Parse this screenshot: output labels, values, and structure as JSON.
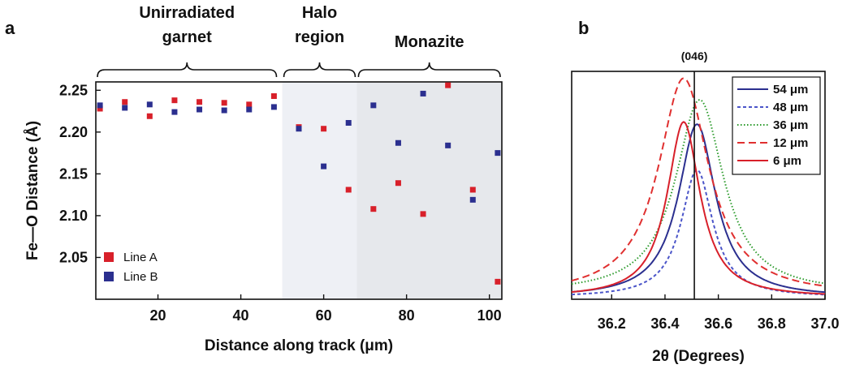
{
  "panel_a": {
    "letter": "a",
    "regions": [
      {
        "lines": [
          "Unirradiated",
          "garnet"
        ],
        "x_range": [
          5,
          49
        ],
        "shade": "#ffffff"
      },
      {
        "lines": [
          "Halo",
          "region"
        ],
        "x_range": [
          50,
          68
        ],
        "shade": "#eef0f5"
      },
      {
        "lines": [
          "Monazite"
        ],
        "x_range": [
          68,
          103
        ],
        "shade": "#e6e8ec"
      }
    ]
  },
  "panel_b": {
    "letter": "b",
    "reference_label": "(046)",
    "reference_x": 36.51
  },
  "colors": {
    "line_a": "#d8202a",
    "line_b": "#2b2f8f",
    "green": "#2a9a2a",
    "axis": "#111111"
  },
  "chart_data": [
    {
      "type": "scatter",
      "title": "",
      "xlabel": "Distance along track (μm)",
      "ylabel": "Fe—O Distance (Å)",
      "xlim": [
        5,
        103
      ],
      "ylim": [
        2.0,
        2.26
      ],
      "xticks": [
        20,
        40,
        60,
        80,
        100
      ],
      "yticks": [
        2.05,
        2.1,
        2.15,
        2.2,
        2.25
      ],
      "ytick_labels": [
        "2.05",
        "2.10",
        "2.15",
        "2.20",
        "2.25"
      ],
      "grid": false,
      "legend_position": "bottom-left",
      "series": [
        {
          "name": "Line A",
          "color": "#d8202a",
          "x": [
            6,
            12,
            18,
            24,
            30,
            36,
            42,
            48,
            54,
            60,
            66,
            72,
            78,
            84,
            90,
            96,
            102
          ],
          "y": [
            2.228,
            2.236,
            2.219,
            2.238,
            2.236,
            2.235,
            2.233,
            2.243,
            2.206,
            2.204,
            2.131,
            2.108,
            2.139,
            2.102,
            2.256,
            2.131,
            2.021
          ]
        },
        {
          "name": "Line B",
          "color": "#2b2f8f",
          "x": [
            6,
            12,
            18,
            24,
            30,
            36,
            42,
            48,
            54,
            60,
            66,
            72,
            78,
            84,
            90,
            96,
            102
          ],
          "y": [
            2.232,
            2.229,
            2.233,
            2.224,
            2.227,
            2.226,
            2.227,
            2.23,
            2.204,
            2.159,
            2.211,
            2.232,
            2.187,
            2.246,
            2.184,
            2.119,
            2.175
          ]
        }
      ]
    },
    {
      "type": "line",
      "title": "",
      "xlabel": "2θ (Degrees)",
      "ylabel": "",
      "xlim": [
        36.05,
        37.0
      ],
      "ylim": [
        0,
        1.0
      ],
      "xticks": [
        36.2,
        36.4,
        36.6,
        36.8,
        37.0
      ],
      "xtick_labels": [
        "36.2",
        "36.4",
        "36.6",
        "36.8",
        "37.0"
      ],
      "grid": false,
      "legend_position": "top-right",
      "series": [
        {
          "name": "54 μm",
          "color": "#2b2f8f",
          "style": "solid",
          "center": 36.52,
          "height": 0.76,
          "width": 0.085,
          "baseline": 0.008
        },
        {
          "name": "48 μm",
          "color": "#4b55c9",
          "style": "dot",
          "center": 36.52,
          "height": 0.56,
          "width": 0.072,
          "baseline": 0.008
        },
        {
          "name": "36 μm",
          "color": "#2a9a2a",
          "style": "dotted",
          "center": 36.53,
          "height": 0.85,
          "width": 0.11,
          "baseline": 0.025
        },
        {
          "name": "12 μm",
          "color": "#e03030",
          "style": "dash",
          "center": 36.47,
          "height": 0.955,
          "width": 0.115,
          "baseline": 0.015
        },
        {
          "name": "6 μm",
          "color": "#d8202a",
          "style": "solid",
          "center": 36.47,
          "height": 0.77,
          "width": 0.075,
          "baseline": 0.008
        }
      ]
    }
  ]
}
